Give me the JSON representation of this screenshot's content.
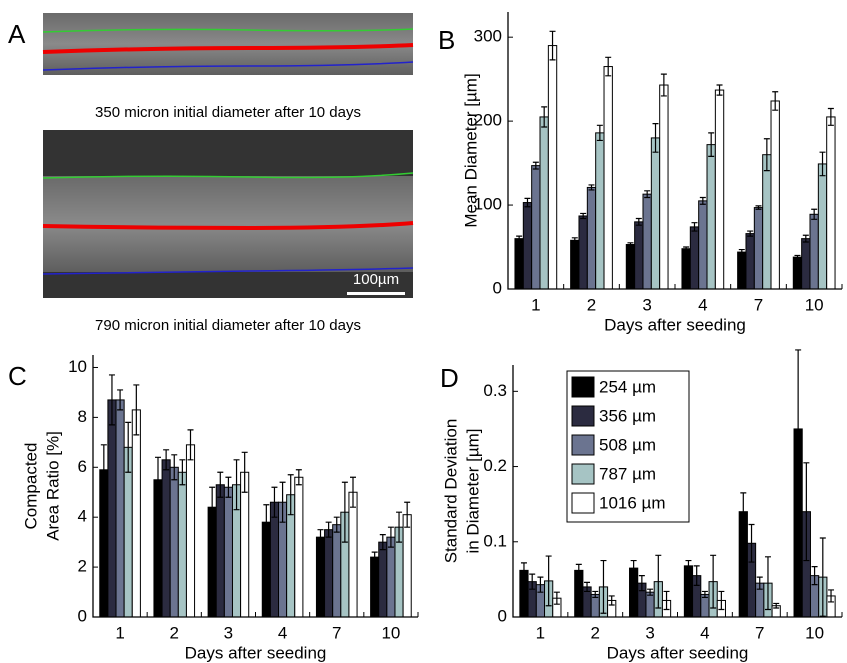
{
  "panel_a": {
    "label": "A",
    "images": [
      {
        "caption": "350 micron initial diameter after 10 days"
      },
      {
        "caption": "790 micron initial diameter after 10 days",
        "scale_bar": "100µm"
      }
    ]
  },
  "chart_data": [
    {
      "type": "bar",
      "panel": "B",
      "xlabel": "Days after seeding",
      "ylabel": [
        "Mean Diameter [µm]"
      ],
      "categories": [
        "1",
        "2",
        "3",
        "4",
        "7",
        "10"
      ],
      "ylim": [
        0,
        330
      ],
      "yticks": [
        0,
        100,
        200,
        300
      ],
      "series": [
        {
          "color": "#000000",
          "values": [
            60,
            58,
            53,
            48,
            44,
            38
          ],
          "errors": [
            3,
            3,
            2,
            2,
            3,
            2
          ]
        },
        {
          "color": "#2b2b40",
          "values": [
            103,
            87,
            80,
            74,
            66,
            60
          ],
          "errors": [
            5,
            3,
            4,
            5,
            3,
            4
          ]
        },
        {
          "color": "#6b7490",
          "values": [
            147,
            121,
            113,
            105,
            97,
            89
          ],
          "errors": [
            4,
            3,
            4,
            4,
            2,
            6
          ]
        },
        {
          "color": "#a6c4c4",
          "values": [
            205,
            186,
            180,
            172,
            160,
            149
          ],
          "errors": [
            12,
            9,
            17,
            14,
            19,
            14
          ]
        },
        {
          "color": "#ffffff",
          "values": [
            290,
            265,
            243,
            237,
            224,
            205
          ],
          "errors": [
            17,
            11,
            13,
            6,
            11,
            10
          ]
        }
      ]
    },
    {
      "type": "bar",
      "panel": "C",
      "xlabel": "Days after seeding",
      "ylabel": [
        "Compacted",
        "Area Ratio [%]"
      ],
      "categories": [
        "1",
        "2",
        "3",
        "4",
        "7",
        "10"
      ],
      "ylim": [
        0,
        10.5
      ],
      "yticks": [
        0,
        2,
        4,
        6,
        8,
        10
      ],
      "series": [
        {
          "color": "#000000",
          "values": [
            5.9,
            5.5,
            4.4,
            3.8,
            3.2,
            2.4
          ],
          "errors": [
            1.0,
            0.9,
            0.8,
            0.7,
            0.3,
            0.2
          ]
        },
        {
          "color": "#2b2b40",
          "values": [
            8.7,
            6.3,
            5.3,
            4.6,
            3.5,
            3.0
          ],
          "errors": [
            1.0,
            0.4,
            0.5,
            0.6,
            0.3,
            0.3
          ]
        },
        {
          "color": "#6b7490",
          "values": [
            8.7,
            6.0,
            5.2,
            4.6,
            3.7,
            3.2
          ],
          "errors": [
            0.4,
            0.5,
            0.4,
            0.8,
            0.3,
            0.4
          ]
        },
        {
          "color": "#a6c4c4",
          "values": [
            6.8,
            5.8,
            5.3,
            4.9,
            4.2,
            3.6
          ],
          "errors": [
            1.0,
            0.5,
            1.0,
            0.8,
            1.2,
            0.6
          ]
        },
        {
          "color": "#ffffff",
          "values": [
            8.3,
            6.9,
            5.8,
            5.6,
            5.0,
            4.1
          ],
          "errors": [
            1.0,
            0.6,
            0.8,
            0.3,
            0.6,
            0.5
          ]
        }
      ]
    },
    {
      "type": "bar",
      "panel": "D",
      "xlabel": "Days after seeding",
      "ylabel": [
        "Standard Deviation",
        "in Diameter [µm]"
      ],
      "categories": [
        "1",
        "2",
        "3",
        "4",
        "7",
        "10"
      ],
      "ylim": [
        0,
        0.335
      ],
      "yticks": [
        0,
        0.1,
        0.2,
        0.3
      ],
      "legend": "upper left",
      "series": [
        {
          "name": "254 µm",
          "color": "#000000",
          "values": [
            0.062,
            0.062,
            0.065,
            0.068,
            0.14,
            0.25
          ],
          "errors": [
            0.01,
            0.008,
            0.01,
            0.007,
            0.025,
            0.105
          ]
        },
        {
          "name": "356 µm",
          "color": "#2b2b40",
          "values": [
            0.047,
            0.04,
            0.045,
            0.055,
            0.098,
            0.14
          ],
          "errors": [
            0.01,
            0.006,
            0.01,
            0.013,
            0.025,
            0.065
          ]
        },
        {
          "name": "508 µm",
          "color": "#6b7490",
          "values": [
            0.043,
            0.03,
            0.033,
            0.03,
            0.045,
            0.055
          ],
          "errors": [
            0.01,
            0.004,
            0.004,
            0.004,
            0.008,
            0.012
          ]
        },
        {
          "name": "787 µm",
          "color": "#a6c4c4",
          "values": [
            0.048,
            0.04,
            0.047,
            0.047,
            0.045,
            0.053
          ],
          "errors": [
            0.033,
            0.035,
            0.035,
            0.035,
            0.035,
            0.052
          ]
        },
        {
          "name": "1016 µm",
          "color": "#ffffff",
          "values": [
            0.025,
            0.022,
            0.022,
            0.022,
            0.015,
            0.028
          ],
          "errors": [
            0.008,
            0.006,
            0.012,
            0.012,
            0.003,
            0.008
          ]
        }
      ]
    }
  ]
}
